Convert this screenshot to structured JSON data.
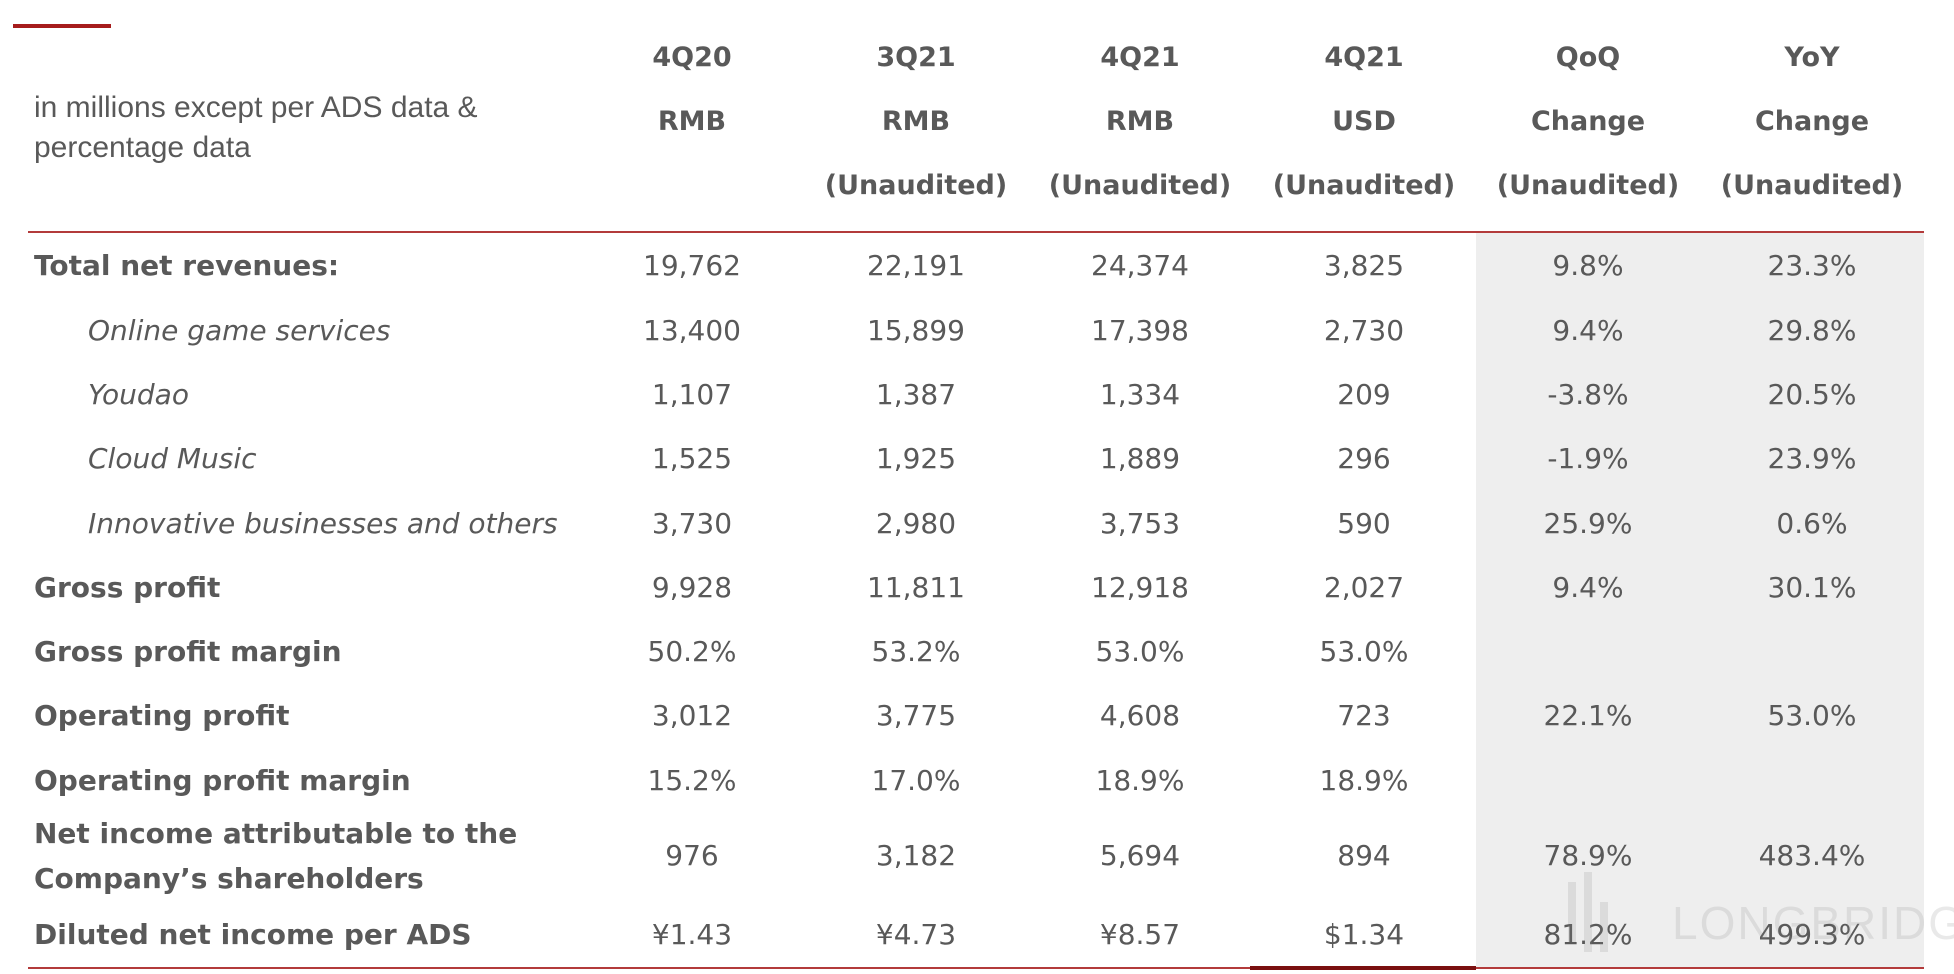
{
  "caption": "in millions except per ADS data & percentage data",
  "columns": [
    {
      "line1": "4Q20",
      "line2": "RMB",
      "line3": ""
    },
    {
      "line1": "3Q21",
      "line2": "RMB",
      "line3": "(Unaudited)"
    },
    {
      "line1": "4Q21",
      "line2": "RMB",
      "line3": "(Unaudited)"
    },
    {
      "line1": "4Q21",
      "line2": "USD",
      "line3": "(Unaudited)"
    },
    {
      "line1": "QoQ",
      "line2": "Change",
      "line3": "(Unaudited)"
    },
    {
      "line1": "YoY",
      "line2": "Change",
      "line3": "(Unaudited)"
    }
  ],
  "rows": [
    {
      "label": "Total net revenues:",
      "values": [
        "19,762",
        "22,191",
        "24,374",
        "3,825",
        "9.8%",
        "23.3%"
      ]
    },
    {
      "label": "Online game services",
      "values": [
        "13,400",
        "15,899",
        "17,398",
        "2,730",
        "9.4%",
        "29.8%"
      ]
    },
    {
      "label": "Youdao",
      "values": [
        "1,107",
        "1,387",
        "1,334",
        "209",
        "-3.8%",
        "20.5%"
      ]
    },
    {
      "label": "Cloud Music",
      "values": [
        "1,525",
        "1,925",
        "1,889",
        "296",
        "-1.9%",
        "23.9%"
      ]
    },
    {
      "label": "Innovative businesses and others",
      "values": [
        "3,730",
        "2,980",
        "3,753",
        "590",
        "25.9%",
        "0.6%"
      ]
    },
    {
      "label": "Gross profit",
      "values": [
        "9,928",
        "11,811",
        "12,918",
        "2,027",
        "9.4%",
        "30.1%"
      ]
    },
    {
      "label": "Gross profit margin",
      "values": [
        "50.2%",
        "53.2%",
        "53.0%",
        "53.0%",
        "",
        ""
      ]
    },
    {
      "label": "Operating profit",
      "values": [
        "3,012",
        "3,775",
        "4,608",
        "723",
        "22.1%",
        "53.0%"
      ]
    },
    {
      "label": "Operating profit margin",
      "values": [
        "15.2%",
        "17.0%",
        "18.9%",
        "18.9%",
        "",
        ""
      ]
    },
    {
      "label_line1": "Net income attributable to the",
      "label_line2": "Company’s shareholders",
      "values": [
        "976",
        "3,182",
        "5,694",
        "894",
        "78.9%",
        "483.4%"
      ]
    },
    {
      "label": "Diluted net income per ADS",
      "values": [
        "¥1.43",
        "¥4.73",
        "¥8.57",
        "$1.34",
        "81.2%",
        "499.3%"
      ]
    }
  ],
  "watermark": "LONGBRIDGE",
  "colors": {
    "accent": "#a61c1c",
    "text": "#595959",
    "shade": "#eeeeee"
  }
}
